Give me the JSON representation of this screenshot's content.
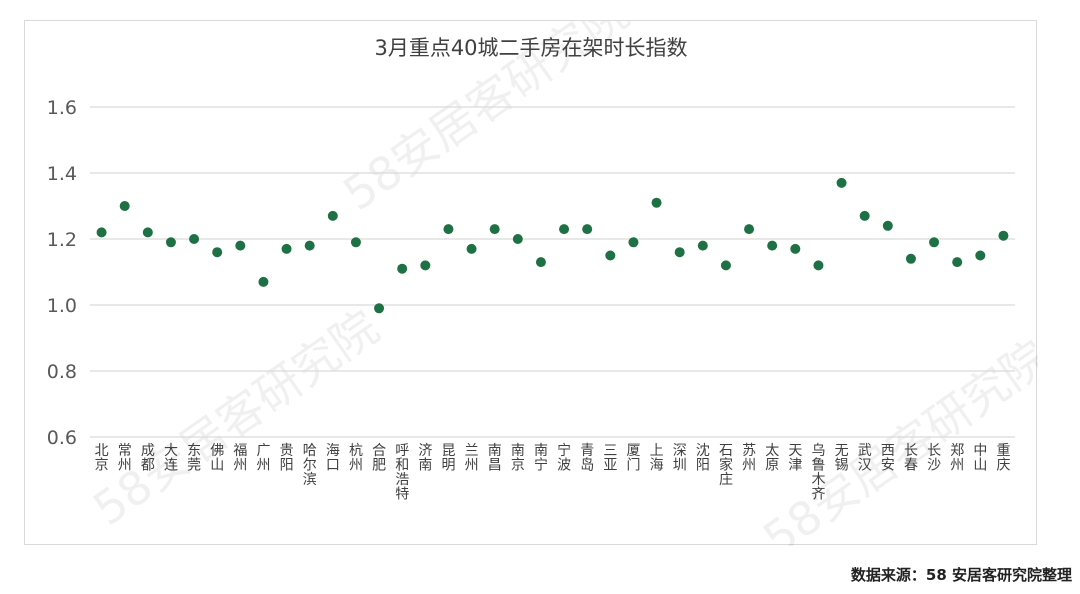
{
  "chart_data": {
    "type": "scatter",
    "title": "3月重点40城二手房在架时长指数",
    "xlabel": "",
    "ylabel": "",
    "ylim": [
      0.6,
      1.6
    ],
    "yticks": [
      "0.6",
      "0.8",
      "1.0",
      "1.2",
      "1.4",
      "1.6"
    ],
    "grid": true,
    "legend": "none",
    "marker_color": "#1e7145",
    "categories": [
      "北京",
      "常州",
      "成都",
      "大连",
      "东莞",
      "佛山",
      "福州",
      "广州",
      "贵阳",
      "哈尔滨",
      "海口",
      "杭州",
      "合肥",
      "呼和浩特",
      "济南",
      "昆明",
      "兰州",
      "南昌",
      "南京",
      "南宁",
      "宁波",
      "青岛",
      "三亚",
      "厦门",
      "上海",
      "深圳",
      "沈阳",
      "石家庄",
      "苏州",
      "太原",
      "天津",
      "乌鲁木齐",
      "无锡",
      "武汉",
      "西安",
      "长春",
      "长沙",
      "郑州",
      "中山",
      "重庆"
    ],
    "values": [
      1.22,
      1.3,
      1.22,
      1.19,
      1.2,
      1.16,
      1.18,
      1.07,
      1.17,
      1.18,
      1.27,
      1.19,
      0.99,
      1.11,
      1.12,
      1.23,
      1.17,
      1.23,
      1.2,
      1.13,
      1.23,
      1.23,
      1.15,
      1.19,
      1.31,
      1.16,
      1.18,
      1.12,
      1.23,
      1.18,
      1.17,
      1.12,
      1.37,
      1.27,
      1.24,
      1.14,
      1.19,
      1.13,
      1.15,
      1.21
    ]
  },
  "watermark": "58安居客研究院",
  "source_note": "数据来源：58 安居客研究院整理"
}
